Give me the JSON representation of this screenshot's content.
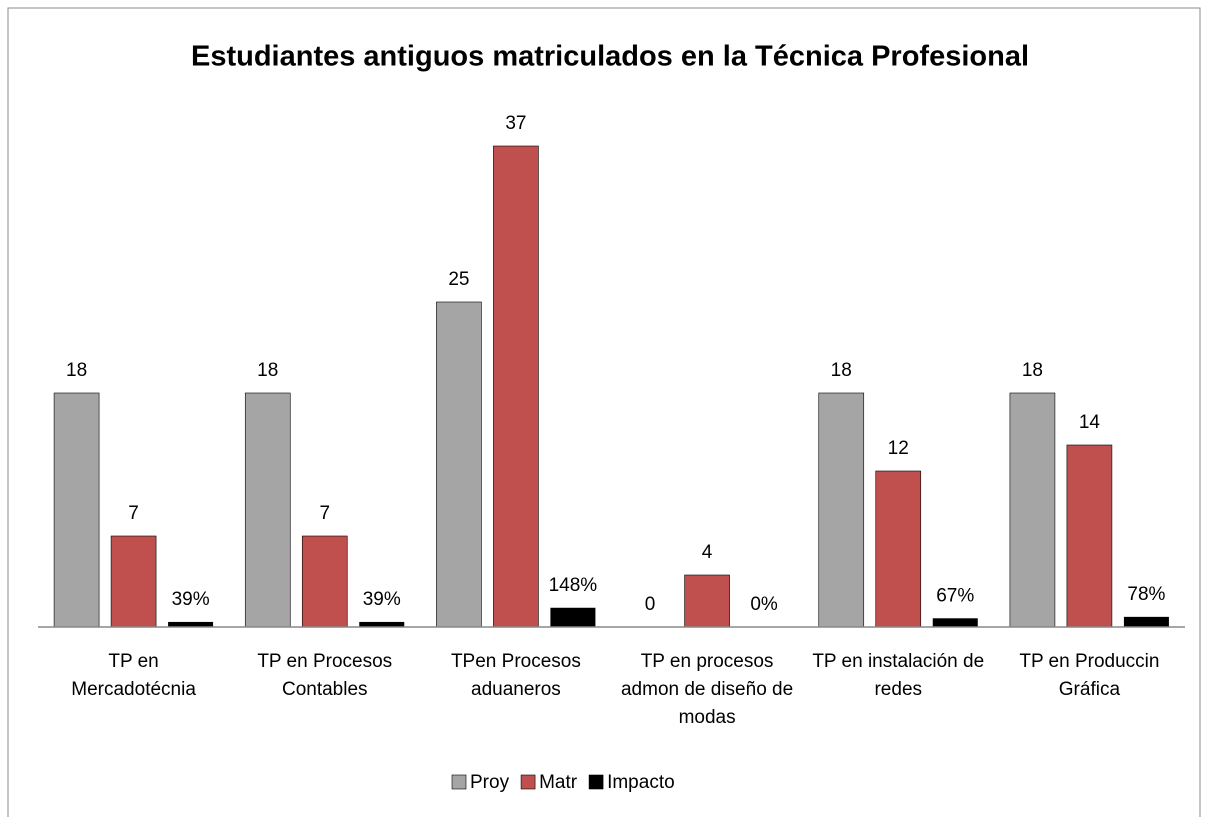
{
  "chart_data": {
    "type": "bar",
    "title": "Estudiantes antiguos matriculados en la Técnica Profesional",
    "categories": [
      "TP en Mercadotécnia",
      "TP en Procesos Contables",
      "TPen Procesos aduaneros",
      "TP en procesos admon de diseño de modas",
      "TP en instalación de redes",
      "TP en Produccin Gráfica"
    ],
    "series": [
      {
        "name": "Proy",
        "color": "#a5a5a5",
        "values": [
          18,
          18,
          25,
          0,
          18,
          18
        ]
      },
      {
        "name": "Matr",
        "color": "#c0504d",
        "values": [
          7,
          7,
          37,
          4,
          12,
          14
        ]
      },
      {
        "name": "Impacto",
        "color": "#000000",
        "values": [
          0.39,
          0.39,
          1.48,
          0,
          0.67,
          0.78
        ],
        "value_labels": [
          "39%",
          "39%",
          "148%",
          "0%",
          "67%",
          "78%"
        ]
      }
    ],
    "ylim": [
      0,
      40
    ],
    "legend": "bottom"
  }
}
